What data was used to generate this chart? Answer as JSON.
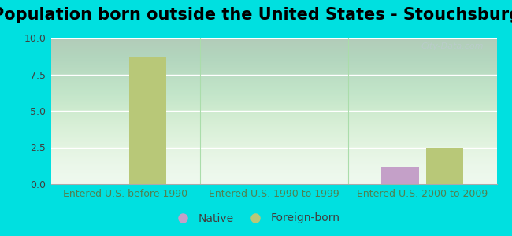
{
  "title": "Population born outside the United States - Stouchsburg",
  "background_color": "#00e0e0",
  "plot_bg_top_color": "#e8f8e8",
  "plot_bg_bottom_color": "#f8fff8",
  "groups": [
    "Entered U.S. before 1990",
    "Entered U.S. 1990 to 1999",
    "Entered U.S. 2000 to 2009"
  ],
  "series": {
    "Native": {
      "values": [
        0,
        0,
        1.2
      ],
      "color": "#c4a0c8"
    },
    "Foreign-born": {
      "values": [
        8.7,
        0,
        2.5
      ],
      "color": "#b8c878"
    }
  },
  "yticks": [
    0,
    2.5,
    5,
    7.5,
    10
  ],
  "ylim": [
    0,
    10
  ],
  "bar_width": 0.25,
  "title_fontsize": 15,
  "tick_fontsize": 9,
  "legend_fontsize": 10,
  "watermark": "City-Data.com",
  "xlabel_color": "#508050",
  "ylabel_color": "#404040"
}
